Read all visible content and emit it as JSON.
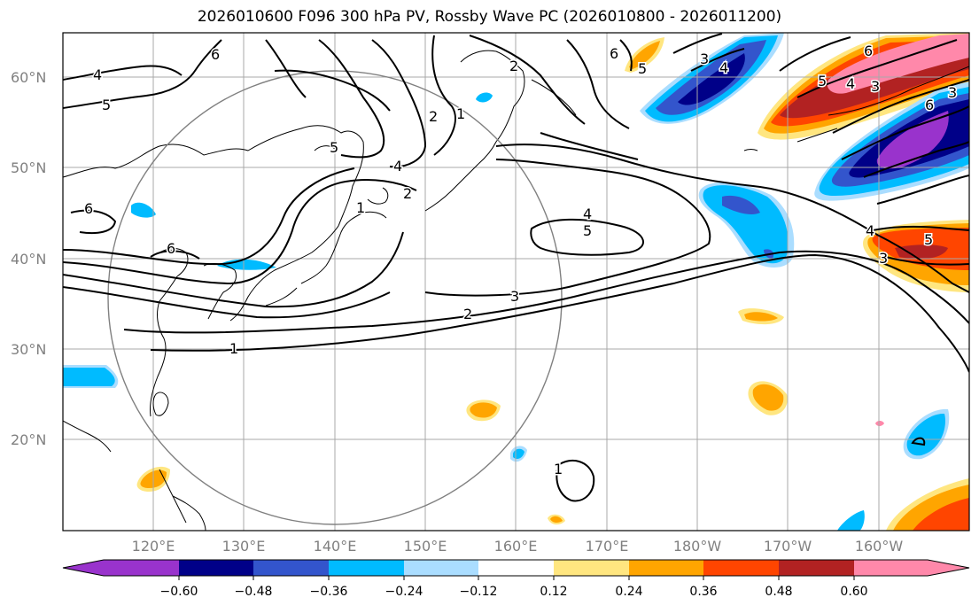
{
  "title": "2026010600 F096 300 hPa PV, Rossby Wave PC (2026010800 - 2026011200)",
  "latitude_labels": [
    "60°N",
    "50°N",
    "40°N",
    "30°N",
    "20°N"
  ],
  "longitude_labels": [
    "120°E",
    "130°E",
    "140°E",
    "150°E",
    "160°E",
    "170°E",
    "180°W",
    "170°W",
    "160°W"
  ],
  "contour_labels": [
    "4",
    "5",
    "6",
    "6",
    "5",
    "2",
    "1",
    "2",
    "4",
    "6",
    "1",
    "2",
    "4",
    "5",
    "3",
    "2",
    "1",
    "1",
    "6",
    "6",
    "3",
    "4",
    "5",
    "4",
    "3",
    "6",
    "3",
    "4",
    "5",
    "3",
    "5"
  ],
  "colorbar": {
    "tick_labels": [
      "−0.60",
      "−0.48",
      "−0.36",
      "−0.24",
      "−0.12",
      "0.12",
      "0.24",
      "0.36",
      "0.48",
      "0.60"
    ],
    "colors": [
      "#9933cc",
      "#000088",
      "#3355cc",
      "#00bbff",
      "#aaddff",
      "#ffffff",
      "#ffe680",
      "#ffa500",
      "#ff4500",
      "#b22222",
      "#ff88aa"
    ]
  },
  "shading_colors": {
    "neg_strong": "#000088",
    "neg_mid": "#3355cc",
    "neg_light": "#00bbff",
    "neg_faint": "#aaddff",
    "neg_extreme": "#9933cc",
    "pos_faint": "#ffe680",
    "pos_light": "#ffa500",
    "pos_mid": "#ff4500",
    "pos_strong": "#b22222",
    "pos_extreme": "#ff88aa"
  }
}
